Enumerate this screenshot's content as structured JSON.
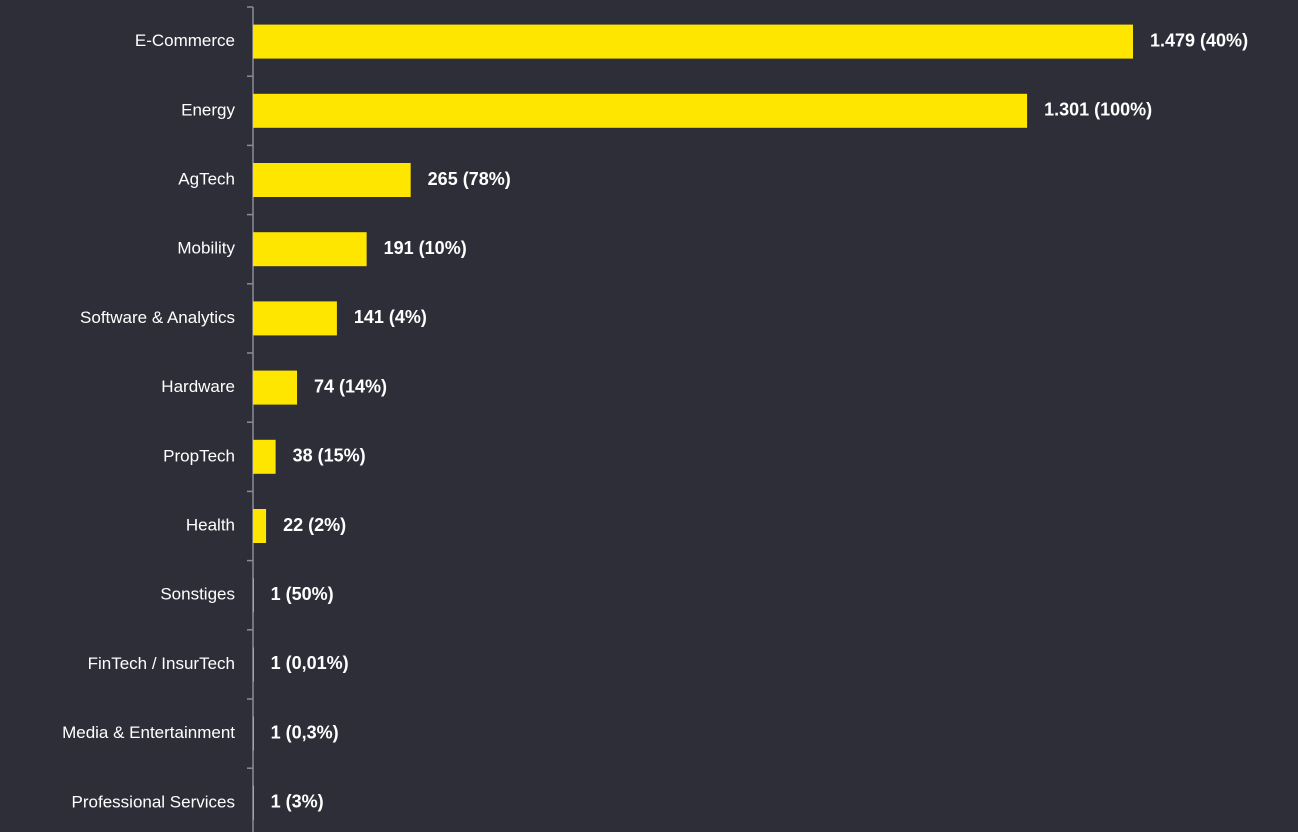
{
  "chart_data": {
    "type": "barh",
    "categories": [
      "E-Commerce",
      "Energy",
      "AgTech",
      "Mobility",
      "Software & Analytics",
      "Hardware",
      "PropTech",
      "Health",
      "Sonstiges",
      "FinTech / InsurTech",
      "Media & Entertainment",
      "Professional Services"
    ],
    "values": [
      1479,
      1301,
      265,
      191,
      141,
      74,
      38,
      22,
      1,
      1,
      1,
      1
    ],
    "value_labels": [
      "1.479 (40%)",
      "1.301 (100%)",
      "265 (78%)",
      "191 (10%)",
      "141 (4%)",
      "74 (14%)",
      "38 (15%)",
      "22 (2%)",
      "1 (50%)",
      "1 (0,01%)",
      "1 (0,3%)",
      "1 (3%)"
    ],
    "color": "#ffe600"
  }
}
